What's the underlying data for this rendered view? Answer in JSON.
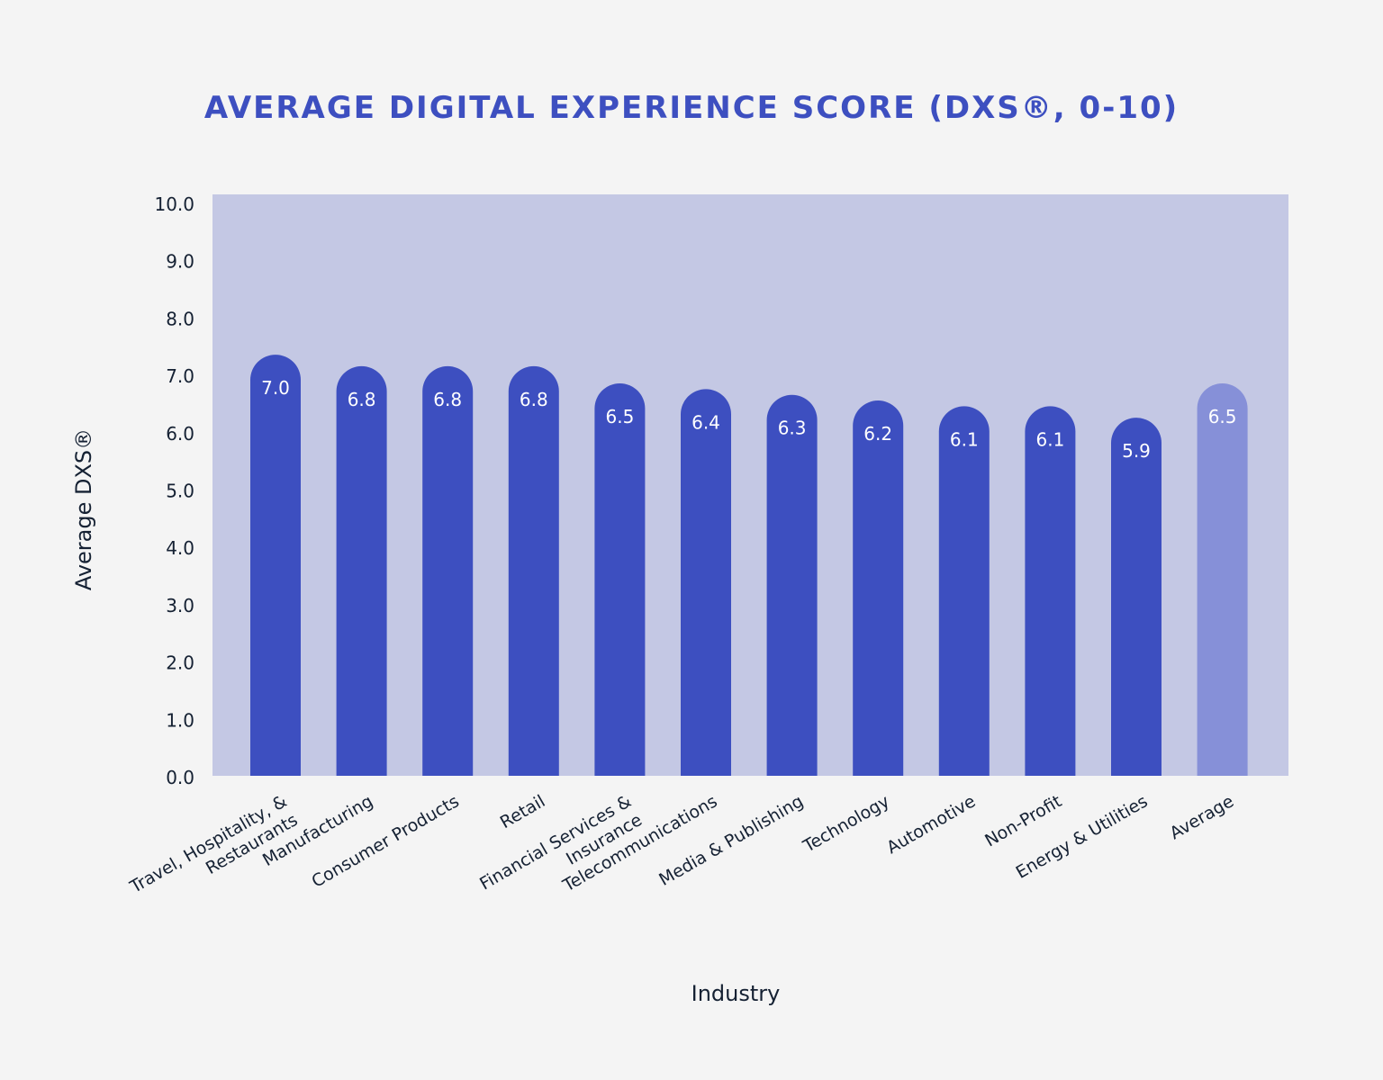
{
  "chart_data": {
    "type": "bar",
    "title": "AVERAGE DIGITAL EXPERIENCE SCORE (DXS®, 0-10)",
    "xlabel": "Industry",
    "ylabel": "Average DXS®",
    "ylim": [
      0,
      10
    ],
    "yticks": [
      "0.0",
      "1.0",
      "2.0",
      "3.0",
      "4.0",
      "5.0",
      "6.0",
      "7.0",
      "8.0",
      "9.0",
      "10.0"
    ],
    "grid": false,
    "legend": "none",
    "categories": [
      [
        "Travel, Hospitality, &",
        "Restaurants"
      ],
      [
        "Manufacturing"
      ],
      [
        "Consumer Products"
      ],
      [
        "Retail"
      ],
      [
        "Financial Services &",
        "Insurance"
      ],
      [
        "Telecommunications"
      ],
      [
        "Media & Publishing"
      ],
      [
        "Technology"
      ],
      [
        "Automotive"
      ],
      [
        "Non-Profit"
      ],
      [
        "Energy & Utilities"
      ],
      [
        "Average"
      ]
    ],
    "values": [
      7.0,
      6.8,
      6.8,
      6.8,
      6.5,
      6.4,
      6.3,
      6.2,
      6.1,
      6.1,
      5.9,
      6.5
    ],
    "value_labels": [
      "7.0",
      "6.8",
      "6.8",
      "6.8",
      "6.5",
      "6.4",
      "6.3",
      "6.2",
      "6.1",
      "6.1",
      "5.9",
      "6.5"
    ],
    "highlight_index": 11
  },
  "colors": {
    "title": "#3d4fc0",
    "plot_background": "#c4c8e4",
    "bar": "#3d4fc0",
    "bar_highlight": "#8690d8",
    "text": "#152133",
    "bar_label": "#ffffff"
  }
}
